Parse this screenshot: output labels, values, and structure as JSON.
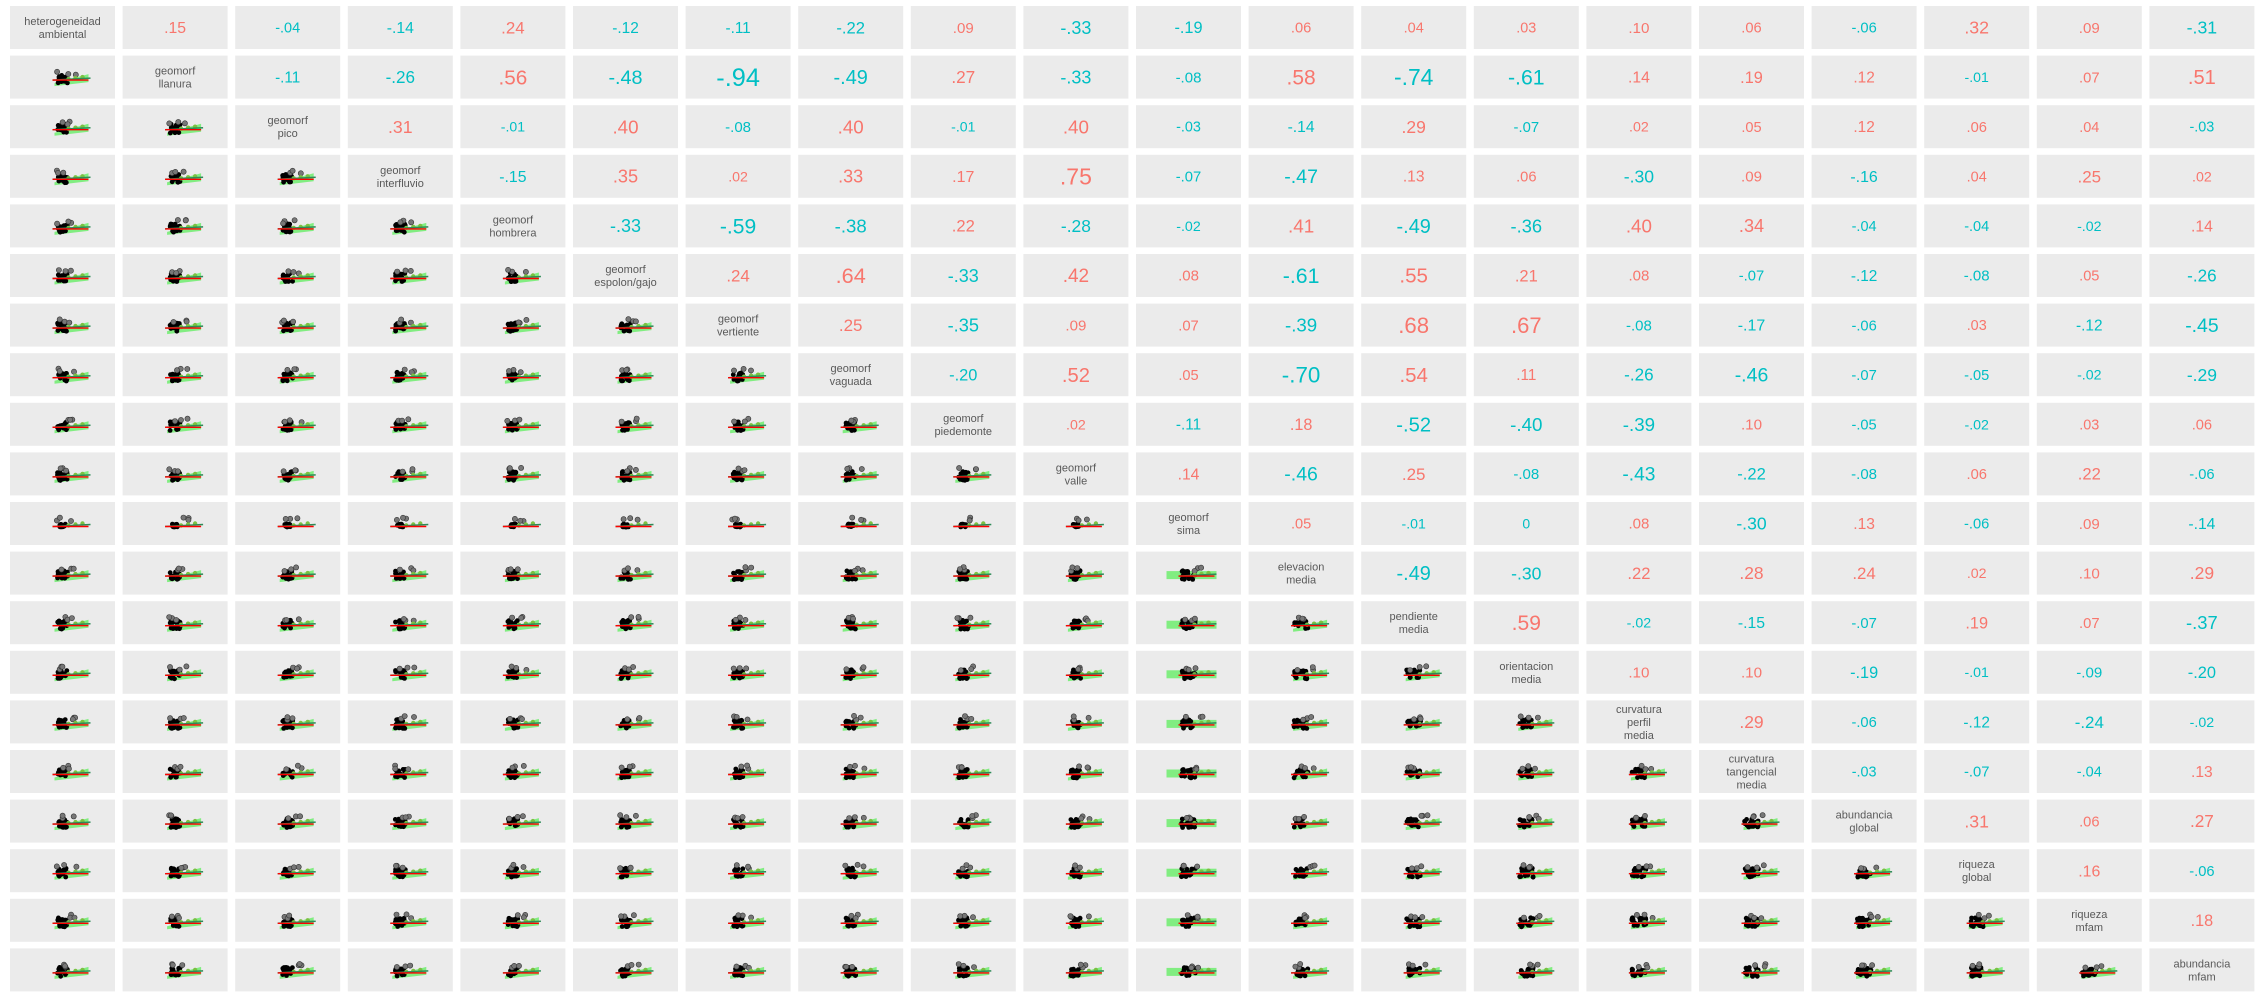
{
  "chart_data": {
    "type": "scatterplot-matrix",
    "colors": {
      "positive": "#f8766d",
      "negative": "#00bfc4",
      "panel_bg": "#ebebeb",
      "label": "#595959",
      "points": "#000000",
      "smooth_line": "#ff0000",
      "fit_line": "#2e8b57",
      "fit_band": "#66ee66"
    },
    "variables": [
      "heterogeneidad\nambiental",
      "geomorf\nllanura",
      "geomorf\npico",
      "geomorf\ninterfluvio",
      "geomorf\nhombrera",
      "geomorf\nespolon/gajo",
      "geomorf\nvertiente",
      "geomorf\nvaguada",
      "geomorf\npiedemonte",
      "geomorf\nvalle",
      "geomorf\nsima",
      "elevacion\nmedia",
      "pendiente\nmedia",
      "orientacion\nmedia",
      "curvatura\nperfil\nmedia",
      "curvatura\ntangencial\nmedia",
      "abundancia\nglobal",
      "riqueza\nglobal",
      "riqueza\nmfam",
      "abundancia\nmfam"
    ],
    "correlations": [
      [
        ".15",
        "-.04",
        "-.14",
        ".24",
        "-.12",
        "-.11",
        "-.22",
        ".09",
        "-.33",
        "-.19",
        ".06",
        ".04",
        ".03",
        ".10",
        ".06",
        "-.06",
        ".32",
        ".09",
        "-.31"
      ],
      [
        "-.11",
        "-.26",
        ".56",
        "-.48",
        "-.94",
        "-.49",
        ".27",
        "-.33",
        "-.08",
        ".58",
        "-.74",
        "-.61",
        ".14",
        ".19",
        ".12",
        "-.01",
        ".07",
        ".51"
      ],
      [
        ".31",
        "-.01",
        ".40",
        "-.08",
        ".40",
        "-.01",
        ".40",
        "-.03",
        "-.14",
        ".29",
        "-.07",
        ".02",
        ".05",
        ".12",
        ".06",
        ".04",
        "-.03"
      ],
      [
        "-.15",
        ".35",
        ".02",
        ".33",
        ".17",
        ".75",
        "-.07",
        "-.47",
        ".13",
        ".06",
        "-.30",
        ".09",
        "-.16",
        ".04",
        ".25",
        ".02"
      ],
      [
        "-.33",
        "-.59",
        "-.38",
        ".22",
        "-.28",
        "-.02",
        ".41",
        "-.49",
        "-.36",
        ".40",
        ".34",
        "-.04",
        "-.04",
        "-.02",
        ".14"
      ],
      [
        ".24",
        ".64",
        "-.33",
        ".42",
        ".08",
        "-.61",
        ".55",
        ".21",
        ".08",
        "-.07",
        "-.12",
        "-.08",
        ".05",
        "-.26"
      ],
      [
        ".25",
        "-.35",
        ".09",
        ".07",
        "-.39",
        ".68",
        ".67",
        "-.08",
        "-.17",
        "-.06",
        ".03",
        "-.12",
        "-.45"
      ],
      [
        "-.20",
        ".52",
        ".05",
        "-.70",
        ".54",
        ".11",
        "-.26",
        "-.46",
        "-.07",
        "-.05",
        "-.02",
        "-.29"
      ],
      [
        ".02",
        "-.11",
        ".18",
        "-.52",
        "-.40",
        "-.39",
        ".10",
        "-.05",
        "-.02",
        ".03",
        ".06"
      ],
      [
        ".14",
        "-.46",
        ".25",
        "-.08",
        "-.43",
        "-.22",
        "-.08",
        ".06",
        ".22",
        "-.06"
      ],
      [
        ".05",
        "-.01",
        "0",
        ".08",
        "-.30",
        ".13",
        "-.06",
        ".09",
        "-.14"
      ],
      [
        "-.49",
        "-.30",
        ".22",
        ".28",
        ".24",
        ".02",
        ".10",
        ".29"
      ],
      [
        ".59",
        "-.02",
        "-.15",
        "-.07",
        ".19",
        ".07",
        "-.37"
      ],
      [
        ".10",
        ".10",
        "-.19",
        "-.01",
        "-.09",
        "-.20"
      ],
      [
        ".29",
        "-.06",
        "-.12",
        "-.24",
        "-.02"
      ],
      [
        "-.03",
        "-.07",
        "-.04",
        ".13"
      ],
      [
        ".31",
        ".06",
        ".27"
      ],
      [
        ".16",
        "-.06"
      ],
      [
        ".18"
      ]
    ]
  }
}
